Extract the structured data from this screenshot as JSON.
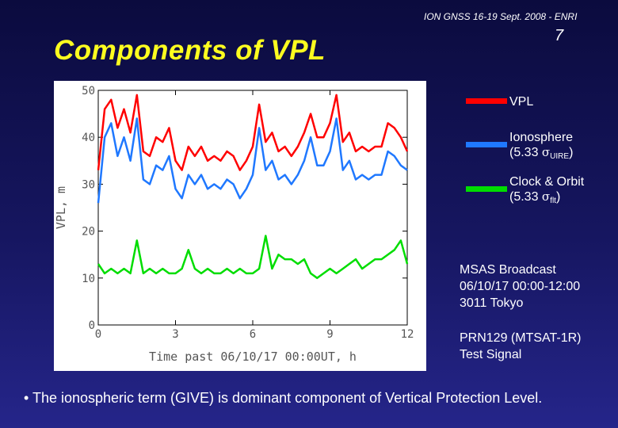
{
  "header": {
    "conference": "ION GNSS 16-19 Sept. 2008 - ENRI",
    "slide_number": "7",
    "title": "Components of VPL"
  },
  "legend": {
    "vpl": {
      "label": "VPL",
      "color": "#ff0000"
    },
    "ionosphere": {
      "label": "Ionosphere",
      "formula_prefix": "(5.33 ",
      "sigma": "σ",
      "subscript": "UIRE",
      "formula_suffix": ")",
      "color": "#1f78ff"
    },
    "clock_orbit": {
      "label": "Clock & Orbit",
      "formula_prefix": "(5.33 ",
      "sigma": "σ",
      "subscript": "flt",
      "formula_suffix": ")",
      "color": "#00dd00"
    }
  },
  "info": {
    "broadcast_lines": [
      "MSAS Broadcast",
      "06/10/17 00:00-12:00",
      "3011 Tokyo"
    ],
    "signal_lines": [
      "PRN129 (MTSAT-1R)",
      "Test Signal"
    ]
  },
  "bullet": "• The ionospheric term (GIVE) is dominant component of Vertical Protection Level.",
  "chart_data": {
    "type": "line",
    "xlabel": "Time past 06/10/17 00:00UT, h",
    "ylabel": "VPL, m",
    "xlim": [
      0,
      12
    ],
    "ylim": [
      0,
      50
    ],
    "xticks": [
      "0",
      "3",
      "6",
      "9",
      "12"
    ],
    "yticks": [
      "0",
      "10",
      "20",
      "30",
      "40",
      "50"
    ],
    "grid": false,
    "x": [
      0,
      0.25,
      0.5,
      0.75,
      1.0,
      1.25,
      1.5,
      1.75,
      2.0,
      2.25,
      2.5,
      2.75,
      3.0,
      3.25,
      3.5,
      3.75,
      4.0,
      4.25,
      4.5,
      4.75,
      5.0,
      5.25,
      5.5,
      5.75,
      6.0,
      6.25,
      6.5,
      6.75,
      7.0,
      7.25,
      7.5,
      7.75,
      8.0,
      8.25,
      8.5,
      8.75,
      9.0,
      9.25,
      9.5,
      9.75,
      10.0,
      10.25,
      10.5,
      10.75,
      11.0,
      11.25,
      11.5,
      11.75,
      12.0
    ],
    "series": [
      {
        "name": "VPL",
        "color": "#ff0000",
        "values": [
          33,
          46,
          48,
          42,
          46,
          41,
          49,
          37,
          36,
          40,
          39,
          42,
          35,
          33,
          38,
          36,
          38,
          35,
          36,
          35,
          37,
          36,
          33,
          35,
          38,
          47,
          39,
          41,
          37,
          38,
          36,
          38,
          41,
          45,
          40,
          40,
          43,
          49,
          39,
          41,
          37,
          38,
          37,
          38,
          38,
          43,
          42,
          40,
          37
        ]
      },
      {
        "name": "Ionosphere",
        "color": "#1f78ff",
        "values": [
          26,
          40,
          43,
          36,
          40,
          35,
          44,
          31,
          30,
          34,
          33,
          36,
          29,
          27,
          32,
          30,
          32,
          29,
          30,
          29,
          31,
          30,
          27,
          29,
          32,
          42,
          33,
          35,
          31,
          32,
          30,
          32,
          35,
          40,
          34,
          34,
          37,
          44,
          33,
          35,
          31,
          32,
          31,
          32,
          32,
          37,
          36,
          34,
          33
        ]
      },
      {
        "name": "Clock & Orbit",
        "color": "#00dd00",
        "values": [
          13,
          11,
          12,
          11,
          12,
          11,
          18,
          11,
          12,
          11,
          12,
          11,
          11,
          12,
          16,
          12,
          11,
          12,
          11,
          11,
          12,
          11,
          12,
          11,
          11,
          12,
          19,
          12,
          15,
          14,
          14,
          13,
          14,
          11,
          10,
          11,
          12,
          11,
          12,
          13,
          14,
          12,
          13,
          14,
          14,
          15,
          16,
          18,
          13
        ]
      }
    ]
  }
}
